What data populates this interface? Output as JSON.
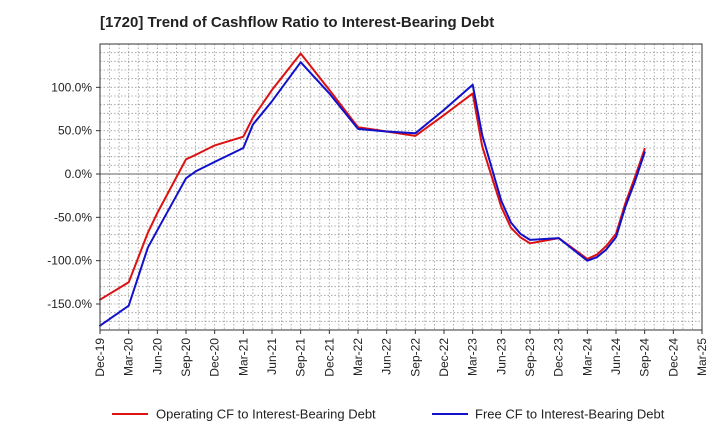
{
  "chart_data": {
    "type": "line",
    "title": "[1720]  Trend of Cashflow Ratio to Interest-Bearing Debt",
    "xlabel": "",
    "ylabel": "",
    "x_tick_labels": [
      "Dec-19",
      "Mar-20",
      "Jun-20",
      "Sep-20",
      "Dec-20",
      "Mar-21",
      "Jun-21",
      "Sep-21",
      "Dec-21",
      "Mar-22",
      "Jun-22",
      "Sep-22",
      "Dec-22",
      "Mar-23",
      "Jun-23",
      "Sep-23",
      "Dec-23",
      "Mar-24",
      "Jun-24",
      "Sep-24",
      "Dec-24",
      "Mar-25"
    ],
    "y_ticks": [
      100,
      50,
      0,
      -50,
      -100,
      -150
    ],
    "y_tick_labels": [
      "100.0%",
      "50.0%",
      "0.0%",
      "-50.0%",
      "-100.0%",
      "-150.0%"
    ],
    "ylim": [
      -180,
      150
    ],
    "grid": true,
    "legend_position": "bottom",
    "colors": {
      "operating": "#dd1111",
      "free": "#1111cc",
      "grid": "#999999",
      "axis": "#333333"
    },
    "series": [
      {
        "name": "Operating CF to Interest-Bearing Debt",
        "color": "#dd1111",
        "x": [
          "Dec-19",
          "Mar-20",
          "May-20",
          "Jun-20",
          "Sep-20",
          "Oct-20",
          "Dec-20",
          "Mar-21",
          "Apr-21",
          "Jun-21",
          "Sep-21",
          "Dec-21",
          "Mar-22",
          "Jun-22",
          "Sep-22",
          "Dec-22",
          "Mar-23",
          "Apr-23",
          "Jun-23",
          "Jul-23",
          "Aug-23",
          "Sep-23",
          "Dec-23",
          "Mar-24",
          "Apr-24",
          "May-24",
          "Jun-24",
          "Jul-24",
          "Aug-24",
          "Sep-24"
        ],
        "values": [
          -145,
          -125,
          -68,
          -45,
          17,
          22,
          33,
          43,
          65,
          97,
          139,
          97,
          54,
          49,
          44,
          68,
          93,
          32,
          -38,
          -62,
          -73,
          -80,
          -74,
          -98,
          -93,
          -83,
          -69,
          -33,
          -3,
          29
        ]
      },
      {
        "name": "Free CF to Interest-Bearing Debt",
        "color": "#1111cc",
        "x": [
          "Dec-19",
          "Mar-20",
          "May-20",
          "Jun-20",
          "Sep-20",
          "Oct-20",
          "Dec-20",
          "Mar-21",
          "Apr-21",
          "Jun-21",
          "Sep-21",
          "Dec-21",
          "Mar-22",
          "Jun-22",
          "Sep-22",
          "Dec-22",
          "Mar-23",
          "Apr-23",
          "Jun-23",
          "Jul-23",
          "Aug-23",
          "Sep-23",
          "Dec-23",
          "Mar-24",
          "Apr-24",
          "May-24",
          "Jun-24",
          "Jul-24",
          "Aug-24",
          "Sep-24"
        ],
        "values": [
          -175,
          -152,
          -85,
          -65,
          -5,
          3,
          14,
          30,
          57,
          84,
          129,
          93,
          52,
          49,
          47,
          74,
          103,
          45,
          -31,
          -56,
          -69,
          -76,
          -74,
          -100,
          -96,
          -87,
          -73,
          -37,
          -8,
          25
        ]
      }
    ]
  }
}
